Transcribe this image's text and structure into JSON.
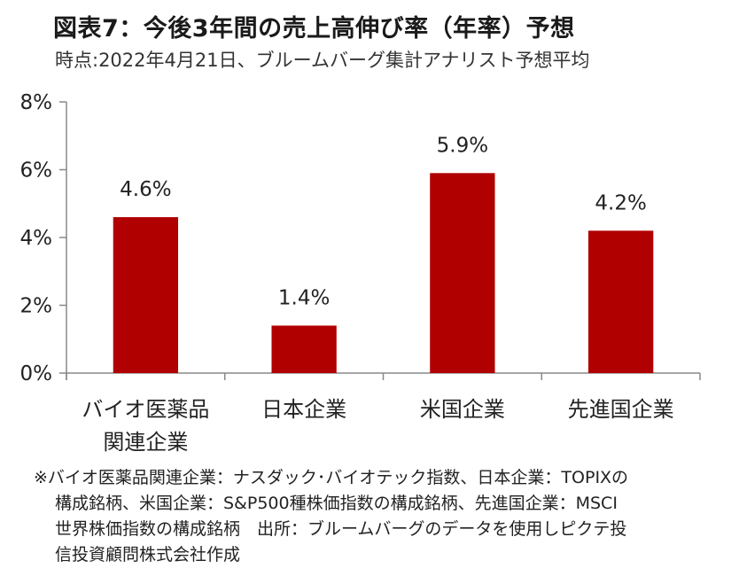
{
  "title": "図表7：今後3年間の売上高伸び率（年率）予想",
  "subtitle": "時点:2022年4月21日、ブルームバーグ集計アナリスト予想平均",
  "chart_data": {
    "type": "bar",
    "categories": [
      [
        "バイオ医薬品",
        "関連企業"
      ],
      [
        "日本企業"
      ],
      [
        "米国企業"
      ],
      [
        "先進国企業"
      ]
    ],
    "values": [
      4.6,
      1.4,
      5.9,
      4.2
    ],
    "value_labels": [
      "4.6%",
      "1.4%",
      "5.9%",
      "4.2%"
    ],
    "yticks": [
      "0%",
      "2%",
      "4%",
      "6%",
      "8%"
    ],
    "ylim": [
      0,
      8
    ],
    "grid": false,
    "bar_color": "#b00000"
  },
  "note": {
    "lines": [
      "※バイオ医薬品関連企業：ナスダック･バイオテック指数、日本企業：TOPIXの",
      "構成銘柄、米国企業：S&P500種株価指数の構成銘柄、先進国企業：MSCI",
      "世界株価指数の構成銘柄　出所：ブルームバーグのデータを使用しピクテ投",
      "信投資顧問株式会社作成"
    ]
  }
}
